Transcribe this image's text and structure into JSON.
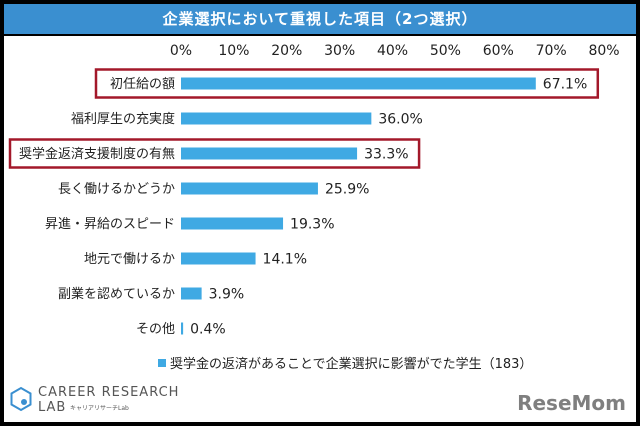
{
  "title": "企業選択において重視した項目（2つ選択）",
  "chart_data": {
    "type": "bar",
    "orientation": "horizontal",
    "categories": [
      "初任給の額",
      "福利厚生の充実度",
      "奨学金返済支援制度の有無",
      "長く働けるかどうか",
      "昇進・昇給のスピード",
      "地元で働けるか",
      "副業を認めているか",
      "その他"
    ],
    "series": [
      {
        "name": "奨学金の返済があることで企業選択に影響がでた学生（183）",
        "values": [
          67.1,
          36.0,
          33.3,
          25.9,
          19.3,
          14.1,
          3.9,
          0.4
        ],
        "value_labels": [
          "67.1%",
          "36.0%",
          "33.3%",
          "25.9%",
          "19.3%",
          "14.1%",
          "3.9%",
          "0.4%"
        ]
      }
    ],
    "x_ticks": [
      "0%",
      "10%",
      "20%",
      "30%",
      "40%",
      "50%",
      "60%",
      "70%",
      "80%"
    ],
    "xlim": [
      0,
      80
    ],
    "grid": false,
    "legend_position": "bottom",
    "highlighted_categories": [
      "初任給の額",
      "奨学金返済支援制度の有無"
    ]
  },
  "colors": {
    "bar": "#3fa9e3",
    "title_bg": "#3a8fd0",
    "highlight_box": "#a3182a"
  },
  "logo": {
    "line1": "CAREER RESEARCH",
    "line2": "LAB",
    "sub": "キャリアリサーチLab"
  },
  "watermark": "ReseMom"
}
